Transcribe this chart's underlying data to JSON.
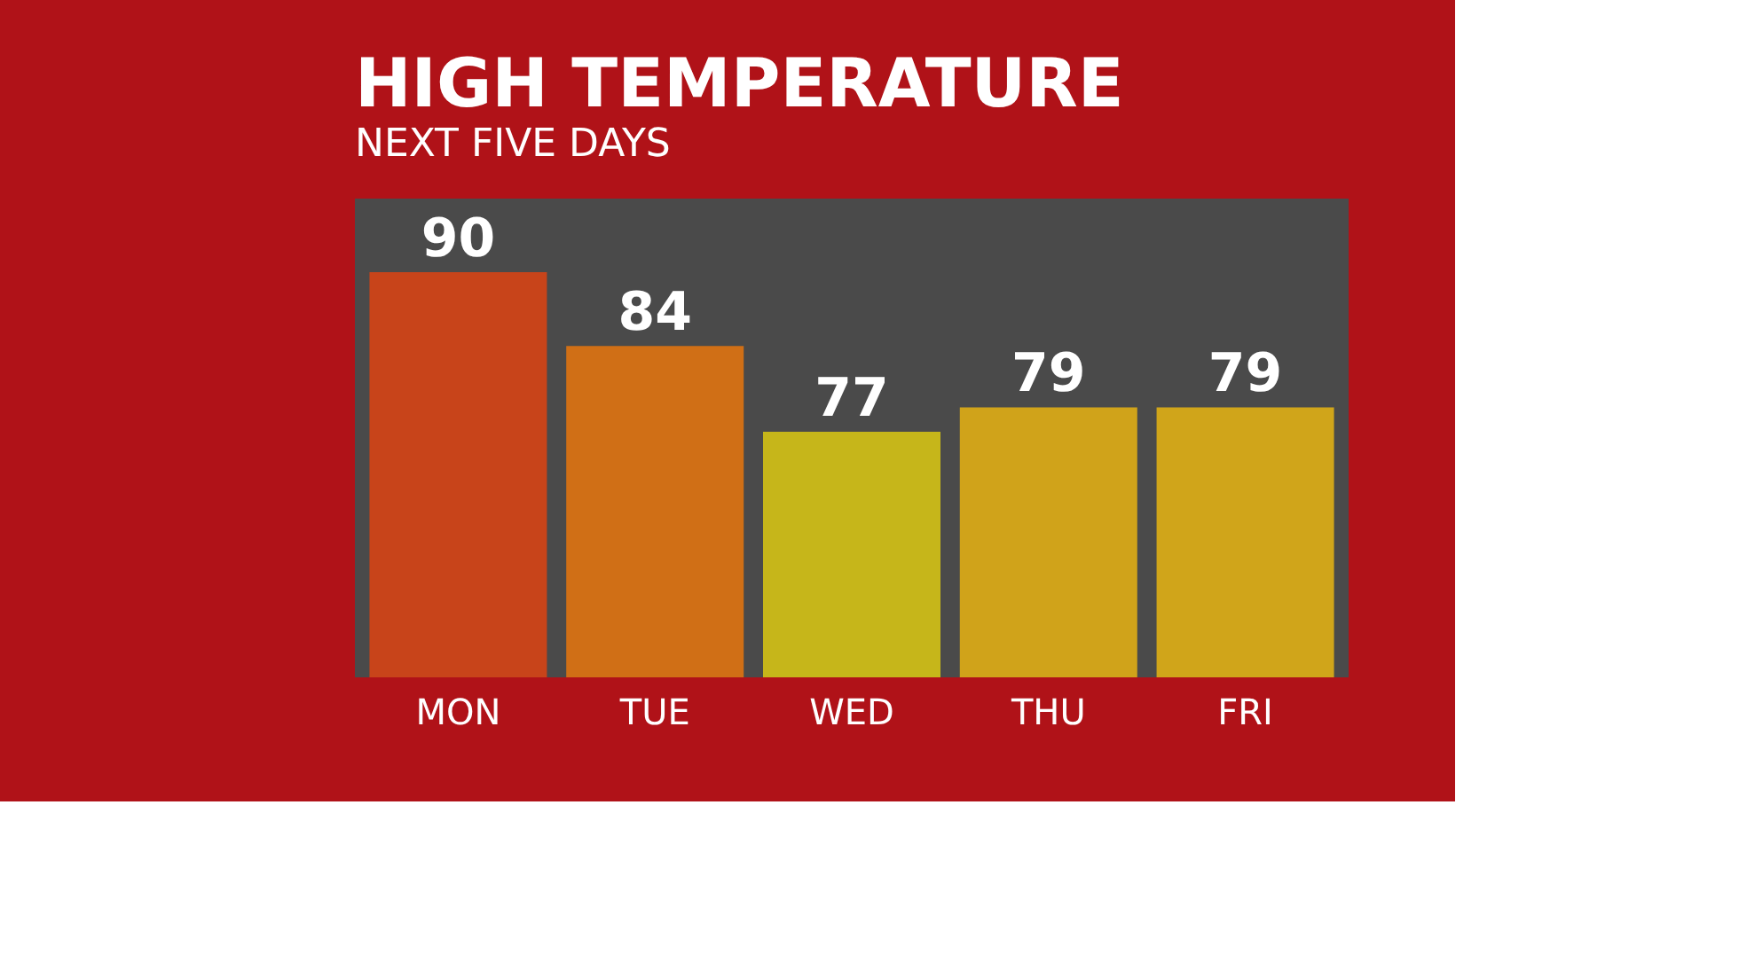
{
  "chart_data": {
    "type": "bar",
    "title": "HIGH TEMPERATURE",
    "subtitle": "NEXT FIVE DAYS",
    "categories": [
      "MON",
      "TUE",
      "WED",
      "THU",
      "FRI"
    ],
    "values": [
      90,
      84,
      77,
      79,
      79
    ],
    "colors": [
      "#c8441a",
      "#d06f16",
      "#c6b61a",
      "#d0a31a",
      "#d0a51a"
    ],
    "ylim": [
      57,
      96
    ],
    "data_labels": true,
    "tick_labels": "x",
    "grid": false,
    "legend": false
  }
}
